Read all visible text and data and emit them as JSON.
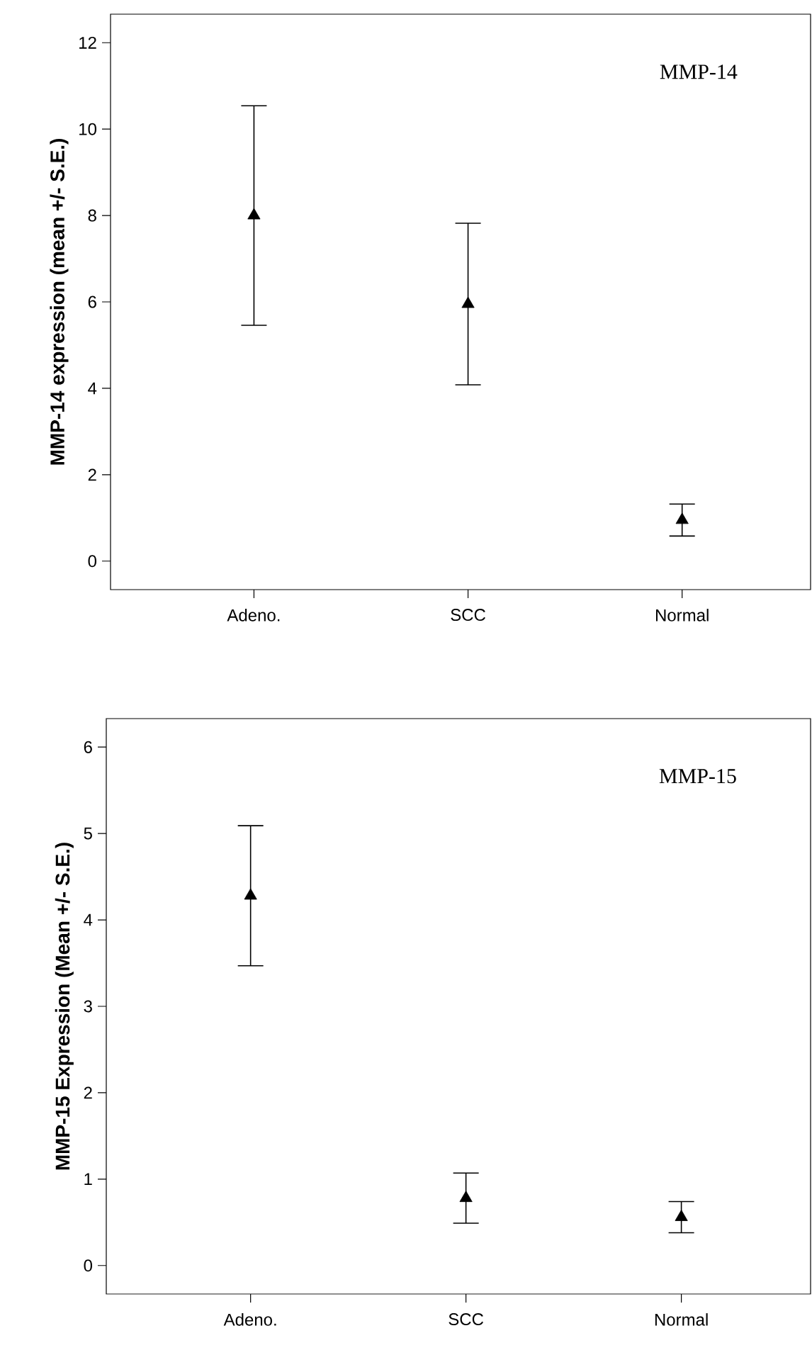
{
  "chart_data": [
    {
      "type": "scatter",
      "ylabel": "MMP-14 expression (mean +/- S.E.)",
      "annotations": [
        "MMP-14"
      ],
      "categories": [
        "Adeno.",
        "SCC",
        "Normal"
      ],
      "values": [
        8.0,
        5.95,
        0.95
      ],
      "errors": [
        2.54,
        1.87,
        0.37
      ],
      "color": "#000000",
      "marker": "triangle",
      "ylim": [
        -0.66,
        12.66
      ],
      "yticks": [
        0,
        2,
        4,
        6,
        8,
        10,
        12
      ]
    },
    {
      "type": "scatter",
      "ylabel": "MMP-15 Expression (Mean +/- S.E.)",
      "annotations": [
        "MMP-15"
      ],
      "categories": [
        "Adeno.",
        "SCC",
        "Normal"
      ],
      "values": [
        4.28,
        0.78,
        0.56
      ],
      "errors": [
        0.81,
        0.29,
        0.18
      ],
      "color": "#000000",
      "marker": "triangle",
      "ylim": [
        -0.33,
        6.33
      ],
      "yticks": [
        0,
        1,
        2,
        3,
        4,
        5,
        6
      ]
    }
  ]
}
